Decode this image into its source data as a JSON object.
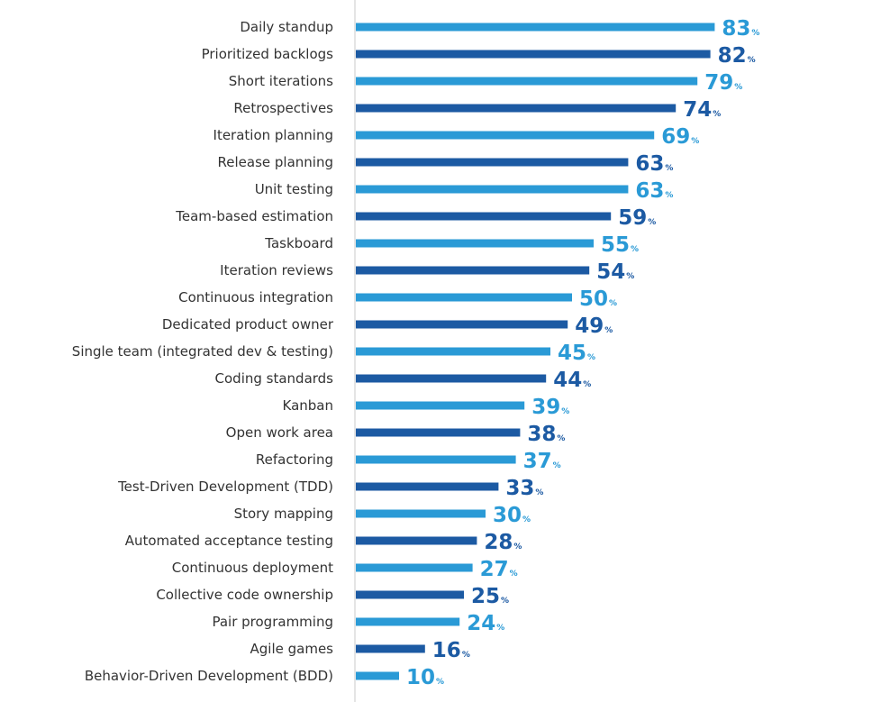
{
  "chart_data": {
    "type": "bar",
    "orientation": "horizontal",
    "categories": [
      "Daily standup",
      "Prioritized backlogs",
      "Short iterations",
      "Retrospectives",
      "Iteration planning",
      "Release planning",
      "Unit testing",
      "Team-based estimation",
      "Taskboard",
      "Iteration reviews",
      "Continuous integration",
      "Dedicated product owner",
      "Single team (integrated dev & testing)",
      "Coding standards",
      "Kanban",
      "Open work area",
      "Refactoring",
      "Test-Driven Development (TDD)",
      "Story mapping",
      "Automated acceptance testing",
      "Continuous deployment",
      "Collective code ownership",
      "Pair programming",
      "Agile games",
      "Behavior-Driven Development (BDD)"
    ],
    "values": [
      83,
      82,
      79,
      74,
      69,
      63,
      63,
      59,
      55,
      54,
      50,
      49,
      45,
      44,
      39,
      38,
      37,
      33,
      30,
      28,
      27,
      25,
      24,
      16,
      10
    ],
    "value_suffix": "%",
    "xlim": [
      0,
      100
    ],
    "grid": false,
    "legend": "none",
    "colors": {
      "light": "#2a9ad6",
      "dark": "#1c5aa3",
      "axis": "#c8c8c8"
    },
    "alternating_colors": true
  }
}
